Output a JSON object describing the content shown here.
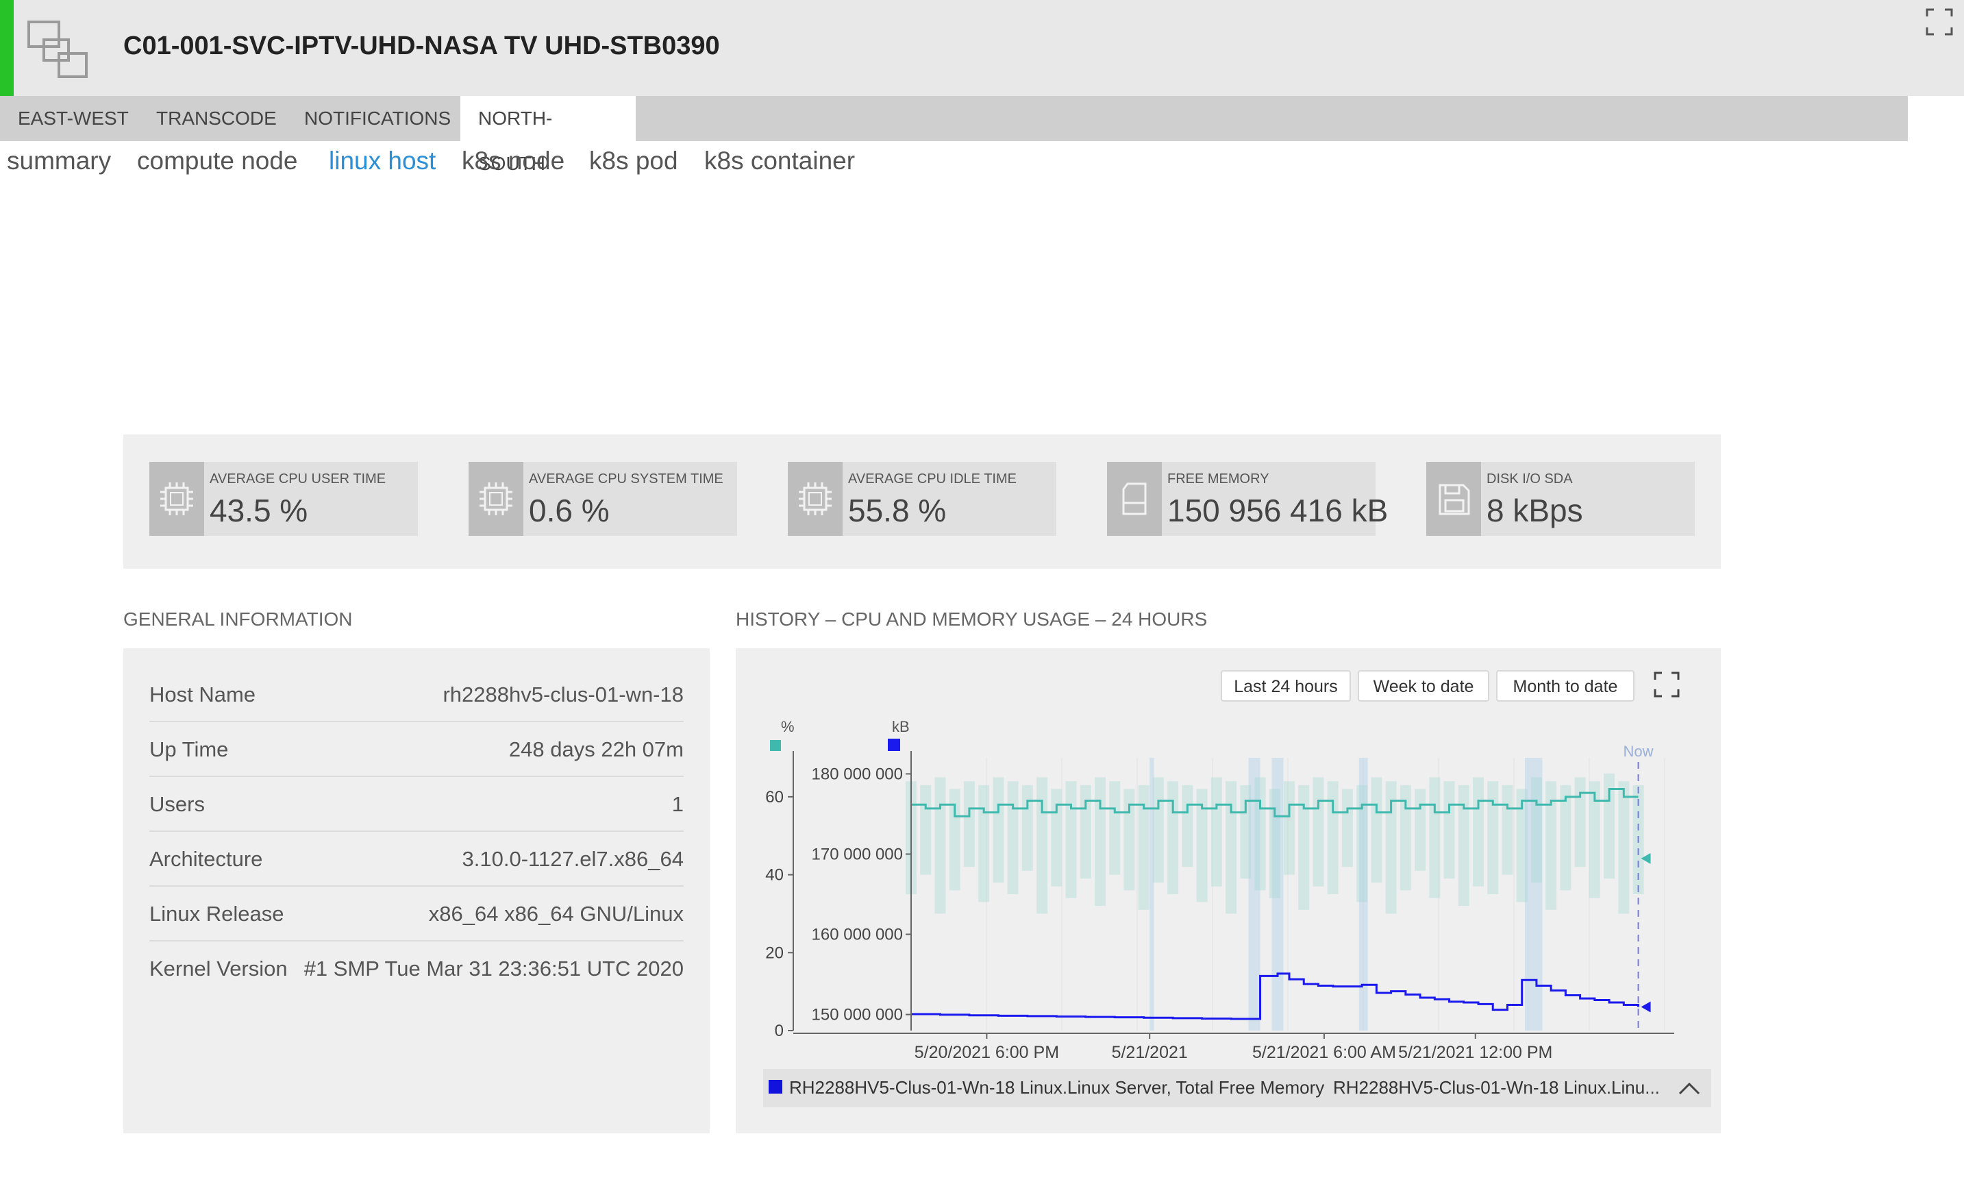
{
  "header": {
    "title": "C01-001-SVC-IPTV-UHD-NASA TV UHD-STB0390"
  },
  "tabs": [
    {
      "label": "EAST-WEST"
    },
    {
      "label": "TRANSCODE"
    },
    {
      "label": "NOTIFICATIONS"
    },
    {
      "label": "NORTH-SOUTH",
      "active": true
    }
  ],
  "subnav": [
    {
      "label": "summary"
    },
    {
      "label": "compute node"
    },
    {
      "label": "linux host",
      "active": true
    },
    {
      "label": "k8s node"
    },
    {
      "label": "k8s pod"
    },
    {
      "label": "k8s container"
    }
  ],
  "kpis": [
    {
      "label": "AVERAGE CPU USER TIME",
      "value": "43.5 %",
      "icon": "cpu-icon"
    },
    {
      "label": "AVERAGE CPU SYSTEM TIME",
      "value": "0.6 %",
      "icon": "cpu-icon"
    },
    {
      "label": "AVERAGE CPU IDLE TIME",
      "value": "55.8 %",
      "icon": "cpu-icon"
    },
    {
      "label": "FREE MEMORY",
      "value": "150 956 416 kB",
      "icon": "memory-card-icon"
    },
    {
      "label": "DISK I/O SDA",
      "value": "8 kBps",
      "icon": "floppy-disk-icon"
    }
  ],
  "general": {
    "title": "GENERAL INFORMATION",
    "rows": [
      {
        "key": "Host Name",
        "value": "rh2288hv5-clus-01-wn-18"
      },
      {
        "key": "Up Time",
        "value": "248 days 22h 07m"
      },
      {
        "key": "Users",
        "value": "1"
      },
      {
        "key": "Architecture",
        "value": "3.10.0-1127.el7.x86_64"
      },
      {
        "key": "Linux Release",
        "value": "x86_64 x86_64 GNU/Linux"
      },
      {
        "key": "Kernel Version",
        "value": "#1 SMP Tue Mar 31 23:36:51 UTC 2020"
      }
    ]
  },
  "history": {
    "title": "HISTORY – CPU AND MEMORY USAGE – 24 HOURS",
    "buttons": [
      "Last 24 hours",
      "Week to date",
      "Month to date"
    ],
    "legend": {
      "item1": "RH2288HV5-Clus-01-Wn-18 Linux.Linux Server, Total Free Memory",
      "item2": "RH2288HV5-Clus-01-Wn-18 Linux.Linu..."
    }
  },
  "chart_data": {
    "type": "line",
    "left_axis": {
      "unit": "%",
      "ticks": [
        0,
        20,
        40,
        60
      ],
      "ylim": [
        0,
        70
      ]
    },
    "right_axis": {
      "unit": "kB",
      "ticks": [
        "150 000 000",
        "160 000 000",
        "170 000 000",
        "180 000 000"
      ],
      "ylim": [
        148000000,
        182000000
      ]
    },
    "x_ticks": [
      "5/20/2021 6:00 PM",
      "5/21/2021",
      "5/21/2021 6:00 AM",
      "5/21/2021 12:00 PM"
    ],
    "now_label": "Now",
    "series": [
      {
        "name": "RH2288HV5-Clus-01-Wn-18 Linux.Linux Server, Total Free Memory",
        "axis": "kB",
        "color": "#1a1aee",
        "x_hours": [
          0,
          1,
          2,
          3,
          4,
          5,
          6,
          7,
          8,
          9,
          10,
          11,
          11.5,
          12,
          12.6,
          13,
          13.5,
          14,
          14.5,
          15,
          15.5,
          16,
          16.5,
          17,
          17.5,
          18,
          18.5,
          19,
          19.5,
          20,
          20.5,
          21,
          21.5,
          22,
          22.5,
          23,
          23.5,
          24,
          24.5,
          25
        ],
        "values": [
          150050000,
          149980000,
          149900000,
          149850000,
          149800000,
          149750000,
          149700000,
          149650000,
          149600000,
          149550000,
          149500000,
          149450000,
          149450000,
          154800000,
          155100000,
          154400000,
          153800000,
          153600000,
          153500000,
          153500000,
          153700000,
          152700000,
          152900000,
          152500000,
          152100000,
          151900000,
          151600000,
          151500000,
          151300000,
          150600000,
          151200000,
          154300000,
          153600000,
          153000000,
          152400000,
          152000000,
          151800000,
          151500000,
          151200000,
          150950000
        ]
      },
      {
        "name": "RH2288HV5-Clus-01-Wn-18 Linux.Linu...",
        "axis": "%",
        "color": "#3fb9ad",
        "x_hours": [
          0,
          0.5,
          1,
          1.5,
          2,
          2.5,
          3,
          3.5,
          4,
          4.5,
          5,
          5.5,
          6,
          6.5,
          7,
          7.5,
          8,
          8.5,
          9,
          9.5,
          10,
          10.5,
          11,
          11.5,
          12,
          12.5,
          13,
          13.5,
          14,
          14.5,
          15,
          15.5,
          16,
          16.5,
          17,
          17.5,
          18,
          18.5,
          19,
          19.5,
          20,
          20.5,
          21,
          21.5,
          22,
          22.5,
          23,
          23.5,
          24,
          24.5,
          25
        ],
        "values": [
          58,
          57,
          58,
          55,
          57,
          56,
          58,
          57,
          59,
          56,
          58,
          57,
          59,
          57,
          56,
          58,
          57,
          59,
          56,
          58,
          57,
          58,
          56,
          59,
          57,
          55,
          58,
          57,
          59,
          56,
          57,
          58,
          56,
          59,
          57,
          58,
          56,
          58,
          57,
          59,
          58,
          57,
          59,
          58,
          59,
          60,
          61,
          59,
          62,
          60,
          60
        ],
        "band_low": [
          35,
          40,
          30,
          36,
          42,
          33,
          38,
          35,
          41,
          30,
          37,
          34,
          39,
          32,
          40,
          36,
          31,
          38,
          35,
          42,
          33,
          37,
          30,
          39,
          36,
          34,
          40,
          31,
          37,
          35,
          42,
          33,
          38,
          30,
          36,
          41,
          34,
          39,
          32,
          37,
          35,
          40,
          33,
          38,
          31,
          36,
          42,
          34,
          39,
          30,
          35
        ],
        "band_high": [
          64,
          63,
          65,
          62,
          64,
          63,
          65,
          64,
          63,
          65,
          62,
          64,
          63,
          65,
          64,
          62,
          63,
          65,
          64,
          63,
          62,
          65,
          64,
          63,
          65,
          62,
          64,
          63,
          65,
          64,
          62,
          63,
          65,
          64,
          63,
          62,
          65,
          64,
          63,
          65,
          64,
          63,
          62,
          65,
          64,
          63,
          65,
          64,
          66,
          64,
          63
        ]
      }
    ]
  }
}
